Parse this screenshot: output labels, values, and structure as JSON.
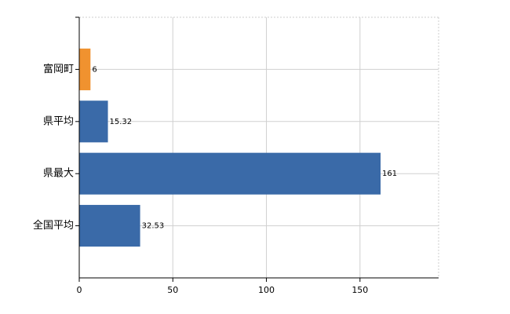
{
  "chart_data": {
    "type": "bar",
    "orientation": "horizontal",
    "categories": [
      "富岡町",
      "県平均",
      "県最大",
      "全国平均"
    ],
    "values": [
      6,
      15.32,
      161,
      32.53
    ],
    "colors": [
      "#f0922f",
      "#3a6aa8",
      "#3a6aa8",
      "#3a6aa8"
    ],
    "xlim": [
      0,
      192
    ],
    "xticks": [
      0,
      50,
      100,
      150
    ],
    "grid": true
  }
}
